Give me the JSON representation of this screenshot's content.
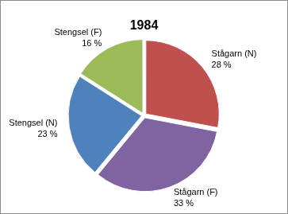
{
  "chart_data": {
    "type": "pie",
    "title": "1984",
    "categories": [
      "Stågarn (N)",
      "Stågarn (F)",
      "Stengsel (N)",
      "Stengsel (F)"
    ],
    "values": [
      28,
      33,
      23,
      16
    ],
    "value_labels": [
      "28 %",
      "33 %",
      "23 %",
      "16 %"
    ],
    "colors": [
      "#c0504d",
      "#8064a2",
      "#4f81bd",
      "#9bbb59"
    ],
    "data_labels": true
  }
}
